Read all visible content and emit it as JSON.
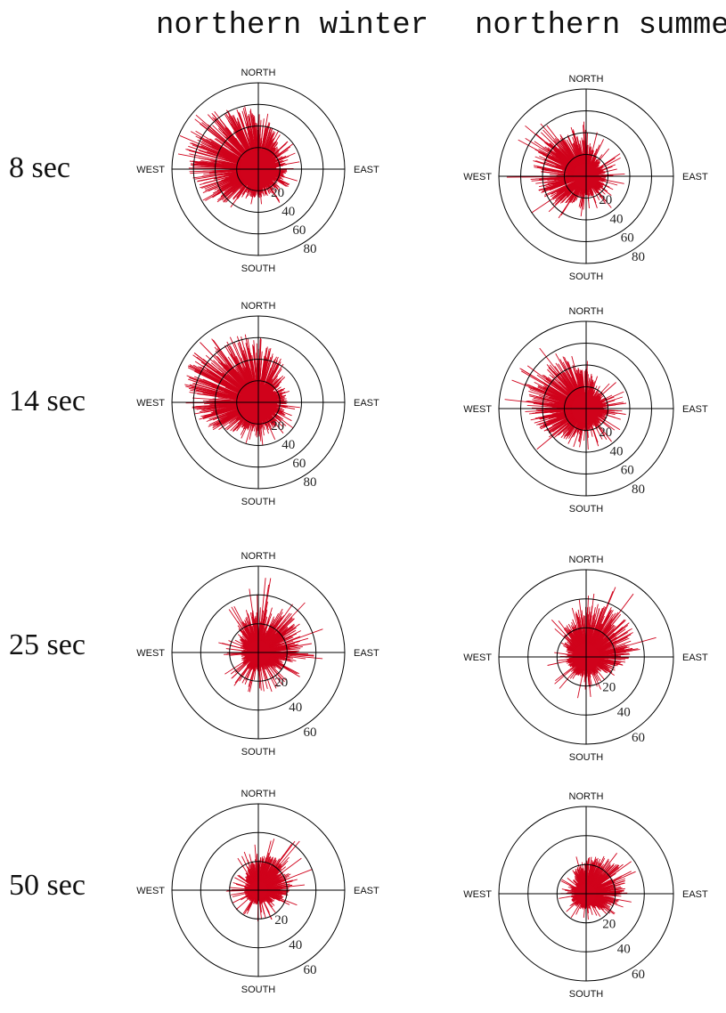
{
  "column_titles": [
    "northern winter",
    "northern summer"
  ],
  "row_labels": [
    "8 sec",
    "14 sec",
    "25 sec",
    "50 sec"
  ],
  "compass": {
    "north": "NORTH",
    "south": "SOUTH",
    "east": "EAST",
    "west": "WEST"
  },
  "colors": {
    "spike": "#d0021b",
    "axis": "#000000"
  },
  "chart_data": [
    {
      "type": "polar-spike",
      "period": "8 sec",
      "season": "northern winter",
      "rlim": [
        0,
        80
      ],
      "ring_labels": [
        "20",
        "40",
        "60",
        "80"
      ],
      "dominant_direction_deg": 300,
      "typical_r": 48,
      "max_r": 80
    },
    {
      "type": "polar-spike",
      "period": "8 sec",
      "season": "northern summer",
      "rlim": [
        0,
        80
      ],
      "ring_labels": [
        "20",
        "40",
        "60",
        "80"
      ],
      "dominant_direction_deg": 290,
      "typical_r": 34,
      "max_r": 76
    },
    {
      "type": "polar-spike",
      "period": "14 sec",
      "season": "northern winter",
      "rlim": [
        0,
        80
      ],
      "ring_labels": [
        "20",
        "40",
        "60",
        "80"
      ],
      "dominant_direction_deg": 310,
      "typical_r": 50,
      "max_r": 80
    },
    {
      "type": "polar-spike",
      "period": "14 sec",
      "season": "northern summer",
      "rlim": [
        0,
        80
      ],
      "ring_labels": [
        "20",
        "40",
        "60",
        "80"
      ],
      "dominant_direction_deg": 290,
      "typical_r": 38,
      "max_r": 78
    },
    {
      "type": "polar-spike",
      "period": "25 sec",
      "season": "northern winter",
      "rlim": [
        0,
        60
      ],
      "ring_labels": [
        "20",
        "40",
        "60"
      ],
      "dominant_direction_deg": 40,
      "typical_r": 24,
      "max_r": 58
    },
    {
      "type": "polar-spike",
      "period": "25 sec",
      "season": "northern summer",
      "rlim": [
        0,
        60
      ],
      "ring_labels": [
        "20",
        "40",
        "60"
      ],
      "dominant_direction_deg": 35,
      "typical_r": 26,
      "max_r": 58
    },
    {
      "type": "polar-spike",
      "period": "50 sec",
      "season": "northern winter",
      "rlim": [
        0,
        60
      ],
      "ring_labels": [
        "20",
        "40",
        "60"
      ],
      "dominant_direction_deg": 45,
      "typical_r": 18,
      "max_r": 45
    },
    {
      "type": "polar-spike",
      "period": "50 sec",
      "season": "northern summer",
      "rlim": [
        0,
        60
      ],
      "ring_labels": [
        "20",
        "40",
        "60"
      ],
      "dominant_direction_deg": 50,
      "typical_r": 20,
      "max_r": 40
    }
  ]
}
